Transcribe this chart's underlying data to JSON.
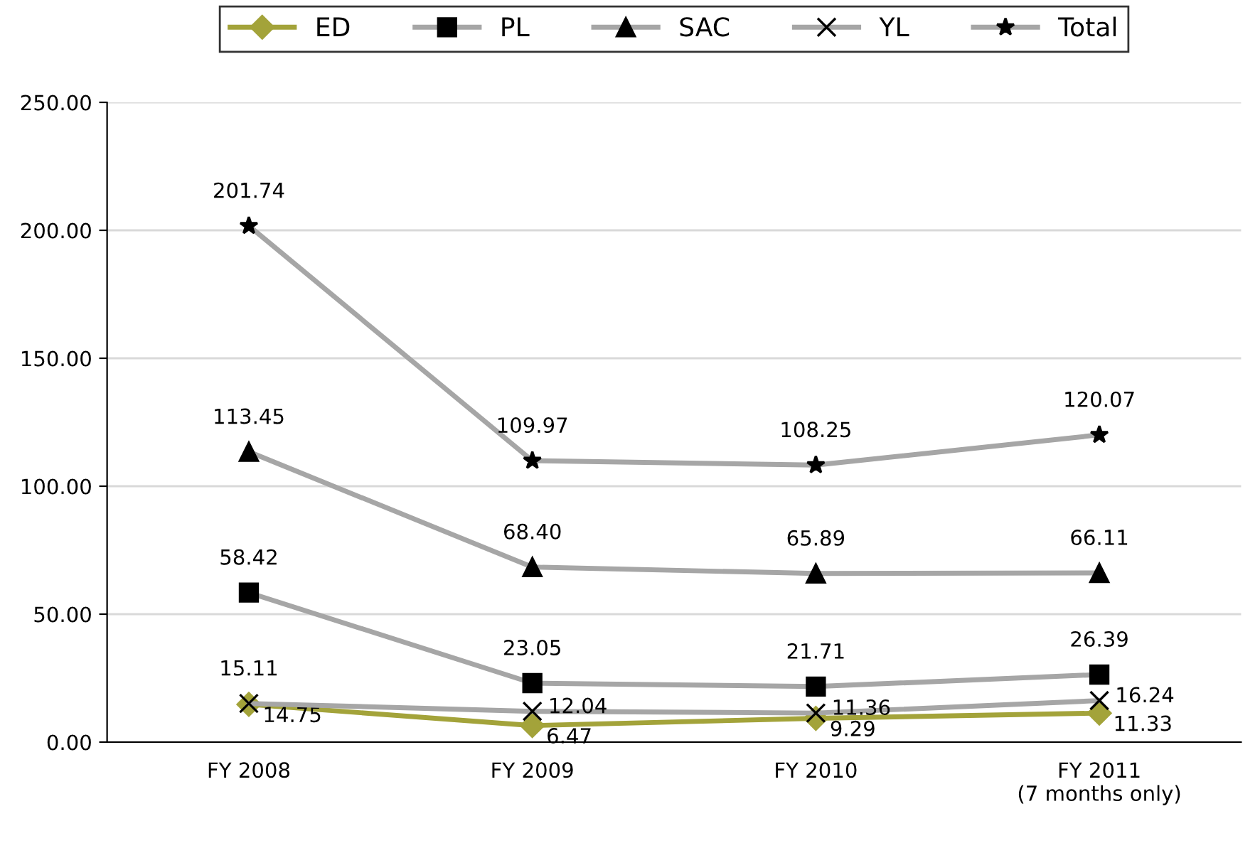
{
  "chart_data": {
    "type": "line",
    "categories": [
      "FY 2008",
      "FY 2009",
      "FY 2010",
      "FY 2011\n(7 months only)"
    ],
    "series": [
      {
        "name": "ED",
        "color": "#a3a33a",
        "marker": "diamond",
        "values": [
          14.75,
          6.47,
          9.29,
          11.33
        ],
        "value_labels": [
          "14.75",
          "6.47",
          "9.29",
          "11.33"
        ]
      },
      {
        "name": "PL",
        "color": "#a6a6a6",
        "marker": "square",
        "values": [
          58.42,
          23.05,
          21.71,
          26.39
        ],
        "value_labels": [
          "58.42",
          "23.05",
          "21.71",
          "26.39"
        ]
      },
      {
        "name": "SAC",
        "color": "#a6a6a6",
        "marker": "triangle",
        "values": [
          113.45,
          68.4,
          65.89,
          66.11
        ],
        "value_labels": [
          "113.45",
          "68.40",
          "65.89",
          "66.11"
        ]
      },
      {
        "name": "YL",
        "color": "#a6a6a6",
        "marker": "cross",
        "values": [
          15.11,
          12.04,
          11.36,
          16.24
        ],
        "value_labels": [
          "15.11",
          "12.04",
          "11.36",
          "16.24"
        ]
      },
      {
        "name": "Total",
        "color": "#a6a6a6",
        "marker": "star",
        "values": [
          201.74,
          109.97,
          108.25,
          120.07
        ],
        "value_labels": [
          "201.74",
          "109.97",
          "108.25",
          "120.07"
        ]
      }
    ],
    "ylim": [
      0,
      250
    ],
    "yticks": [
      {
        "value": 0,
        "label": "0.00"
      },
      {
        "value": 50,
        "label": "50.00"
      },
      {
        "value": 100,
        "label": "100.00"
      },
      {
        "value": 150,
        "label": "150.00"
      },
      {
        "value": 200,
        "label": "200.00"
      },
      {
        "value": 250,
        "label": "250.00"
      }
    ],
    "grid": "y",
    "legend": "top",
    "line_style": "solid"
  }
}
